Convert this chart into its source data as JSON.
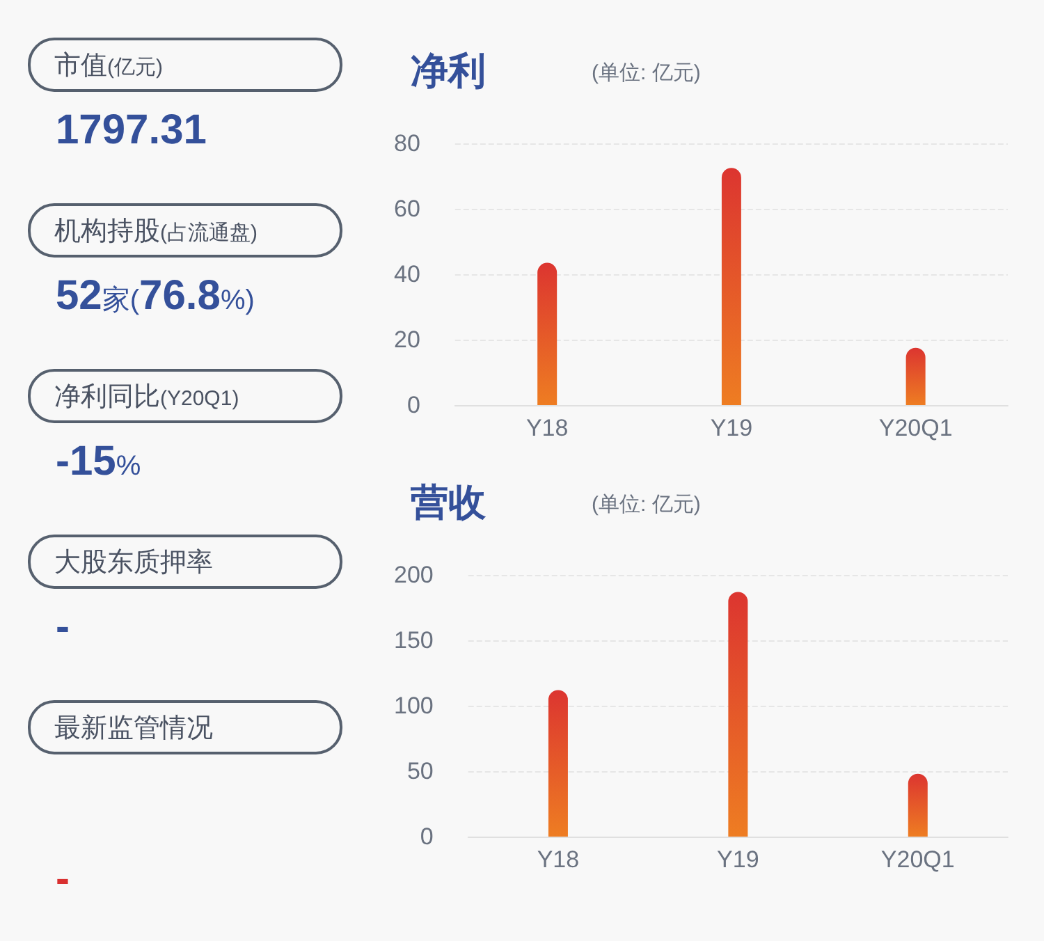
{
  "chart_data": [
    {
      "type": "other",
      "annotations": [
        "市值(亿元)",
        "1797.31",
        "机构持股(占流通盘)",
        "52家(76.8%)",
        "净利同比(Y20Q1)",
        "-15%",
        "大股东质押率",
        "-",
        "最新监管情况",
        "-"
      ]
    },
    {
      "type": "bar",
      "title": "净利",
      "subtitle": "(单位: 亿元)",
      "categories": [
        "Y18",
        "Y19",
        "Y20Q1"
      ],
      "values": [
        43.5,
        72.5,
        17.5
      ],
      "color": "#dc3530",
      "ylim": [
        0,
        80
      ],
      "yticks": [
        0,
        20,
        40,
        60,
        80
      ],
      "grid": "y"
    },
    {
      "type": "bar",
      "title": "营收",
      "subtitle": "(单位: 亿元)",
      "categories": [
        "Y18",
        "Y19",
        "Y20Q1"
      ],
      "values": [
        112,
        187,
        48
      ],
      "color": "#dc3530",
      "ylim": [
        0,
        200
      ],
      "yticks": [
        0,
        50,
        100,
        150,
        200
      ],
      "grid": "y"
    }
  ]
}
